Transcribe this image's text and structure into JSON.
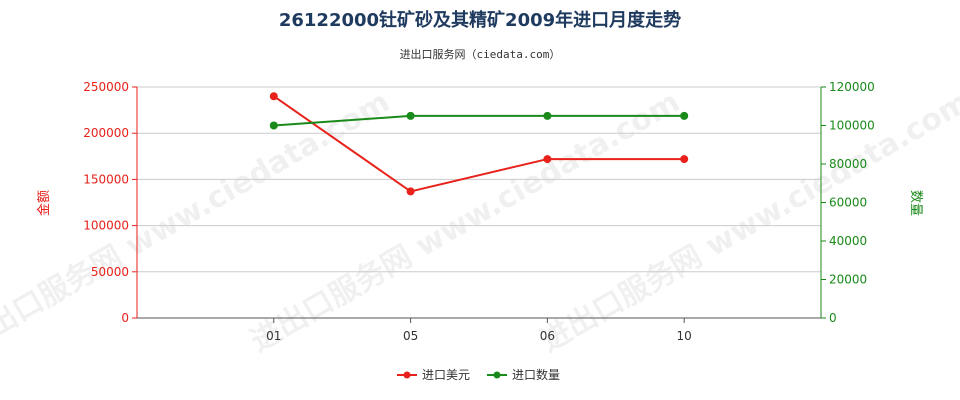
{
  "chart_data": {
    "type": "line",
    "title": "26122000钍矿砂及其精矿2009年进口月度走势",
    "subtitle": "进出口服务网（ciedata.com）",
    "watermark": "进出口服务网 www.ciedata.com",
    "categories": [
      "01",
      "05",
      "06",
      "10"
    ],
    "y_left": {
      "label": "金额",
      "range": [
        0,
        250000
      ],
      "ticks": [
        "0",
        "50000",
        "100000",
        "150000",
        "200000",
        "250000"
      ],
      "color": "#e8211a"
    },
    "y_right": {
      "label": "数量",
      "range": [
        0,
        120000
      ],
      "ticks": [
        "0",
        "20000",
        "40000",
        "60000",
        "80000",
        "100000",
        "120000"
      ],
      "color": "#1a8a1a"
    },
    "grid": true,
    "legend_position": "bottom",
    "series": [
      {
        "name": "进口美元",
        "axis": "left",
        "color": "#e8211a",
        "values": [
          240000,
          137000,
          172000,
          172000
        ]
      },
      {
        "name": "进口数量",
        "axis": "right",
        "color": "#1a8a1a",
        "values": [
          100000,
          105000,
          105000,
          105000
        ]
      }
    ]
  }
}
